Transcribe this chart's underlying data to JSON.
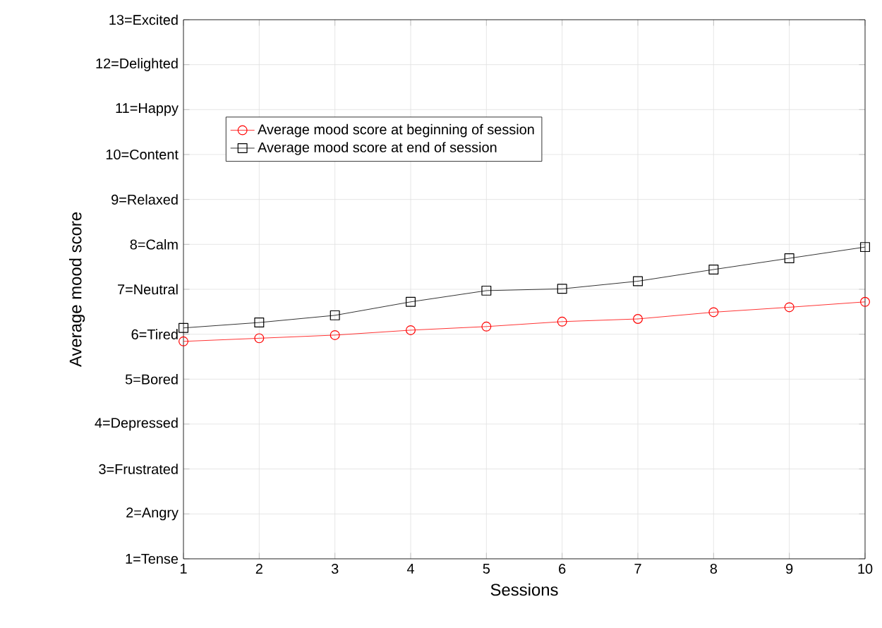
{
  "chart_data": {
    "type": "line",
    "xlabel": "Sessions",
    "ylabel": "Average mood score",
    "x": [
      1,
      2,
      3,
      4,
      5,
      6,
      7,
      8,
      9,
      10
    ],
    "series": [
      {
        "name": "Average mood score at beginning of session",
        "color": "#ff0000",
        "marker": "circle",
        "values": [
          5.84,
          5.91,
          5.98,
          6.09,
          6.17,
          6.28,
          6.34,
          6.49,
          6.6,
          6.72
        ]
      },
      {
        "name": "Average mood score at end of session",
        "color": "#000000",
        "marker": "square",
        "values": [
          6.14,
          6.26,
          6.42,
          6.72,
          6.97,
          7.01,
          7.18,
          7.44,
          7.69,
          7.94
        ]
      }
    ],
    "xlim": [
      1,
      10
    ],
    "ylim": [
      1,
      13
    ],
    "xticks": [
      1,
      2,
      3,
      4,
      5,
      6,
      7,
      8,
      9,
      10
    ],
    "yticks": [
      {
        "value": 1,
        "label": "1=Tense"
      },
      {
        "value": 2,
        "label": "2=Angry"
      },
      {
        "value": 3,
        "label": "3=Frustrated"
      },
      {
        "value": 4,
        "label": "4=Depressed"
      },
      {
        "value": 5,
        "label": "5=Bored"
      },
      {
        "value": 6,
        "label": "6=Tired"
      },
      {
        "value": 7,
        "label": "7=Neutral"
      },
      {
        "value": 8,
        "label": "8=Calm"
      },
      {
        "value": 9,
        "label": "9=Relaxed"
      },
      {
        "value": 10,
        "label": "10=Content"
      },
      {
        "value": 11,
        "label": "11=Happy"
      },
      {
        "value": 12,
        "label": "12=Delighted"
      },
      {
        "value": 13,
        "label": "13=Excited"
      }
    ],
    "grid": true,
    "legend": "top left",
    "line_style": "solid"
  }
}
